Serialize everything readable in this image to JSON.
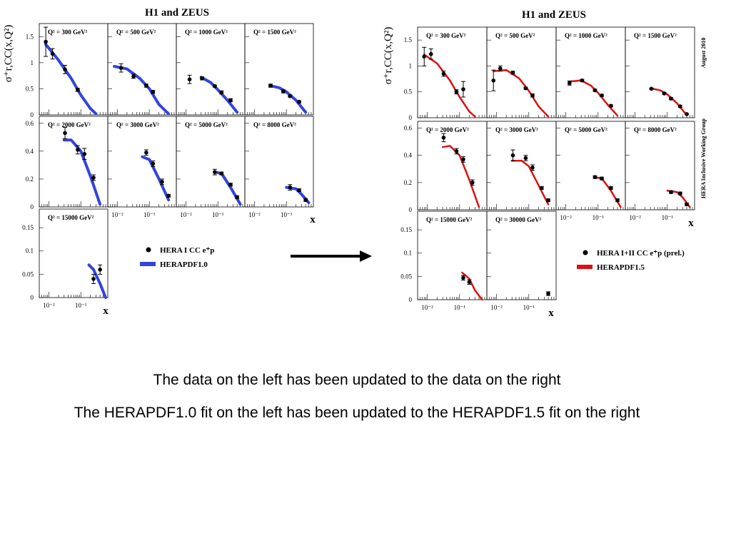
{
  "figures": [
    {
      "title": "H1 and ZEUS",
      "ylabel": "σ⁺r,CC(x,Q²)",
      "xlabel": "x",
      "data_color": "#000000",
      "fit_color": "#3344dd",
      "legend": {
        "data_label": "HERA I CC e⁺p",
        "fit_label": "HERAPDF1.0"
      },
      "side_note": ""
    },
    {
      "title": "H1 and ZEUS",
      "ylabel": "σ⁺r,CC(x,Q²)",
      "xlabel": "x",
      "data_color": "#000000",
      "fit_color": "#dd1111",
      "legend": {
        "data_label": "HERA I+II CC e⁺p (prel.)",
        "fit_label": "HERAPDF1.5"
      },
      "side_note": "August 2010",
      "side_note2": "HERA Inclusive Working Group"
    }
  ],
  "arrow": {
    "icon": "right-arrow-icon"
  },
  "captions": {
    "line1": "The data on the left has been updated to the data on the right",
    "line2": "The HERAPDF1.0 fit on the left has been updated to the HERAPDF1.5 fit on the right"
  },
  "chart_data": [
    {
      "type": "scatter",
      "title": "H1 and ZEUS",
      "xscale": "log",
      "x_ticks": [
        "10⁻²",
        "10⁻¹"
      ],
      "rows": [
        {
          "ylim": [
            0,
            1.75
          ],
          "yticks": [
            "0",
            "0.5",
            "1",
            "1.5"
          ]
        },
        {
          "ylim": [
            0,
            0.65
          ],
          "yticks": [
            "0",
            "0.2",
            "0.4",
            "0.6"
          ]
        },
        {
          "ylim": [
            0,
            0.19
          ],
          "yticks": [
            "0",
            "0.05",
            "0.1",
            "0.15"
          ]
        }
      ],
      "panels": [
        {
          "label": "Q² = 300 GeV²",
          "row": 0,
          "col": 0,
          "points": [
            [
              0.008,
              1.4,
              0.28
            ],
            [
              0.013,
              1.17,
              0.1
            ],
            [
              0.032,
              0.87,
              0.08
            ],
            [
              0.08,
              0.48,
              0.03
            ]
          ],
          "fit": [
            [
              0.008,
              1.35
            ],
            [
              0.02,
              1.05
            ],
            [
              0.05,
              0.7
            ],
            [
              0.1,
              0.38
            ],
            [
              0.2,
              0.12
            ],
            [
              0.3,
              0.02
            ]
          ]
        },
        {
          "label": "Q² = 500 GeV²",
          "row": 0,
          "col": 1,
          "points": [
            [
              0.013,
              0.9,
              0.08
            ],
            [
              0.032,
              0.74,
              0.04
            ],
            [
              0.08,
              0.56,
              0.03
            ],
            [
              0.13,
              0.44,
              0.03
            ]
          ],
          "fit": [
            [
              0.008,
              0.93
            ],
            [
              0.02,
              0.88
            ],
            [
              0.05,
              0.7
            ],
            [
              0.1,
              0.5
            ],
            [
              0.2,
              0.2
            ],
            [
              0.4,
              0.02
            ]
          ]
        },
        {
          "label": "Q² = 1000 GeV²",
          "row": 0,
          "col": 2,
          "points": [
            [
              0.013,
              0.68,
              0.08
            ],
            [
              0.032,
              0.7,
              0.03
            ],
            [
              0.08,
              0.55,
              0.02
            ],
            [
              0.13,
              0.43,
              0.03
            ],
            [
              0.25,
              0.28,
              0.03
            ]
          ],
          "fit": [
            [
              0.03,
              0.72
            ],
            [
              0.06,
              0.62
            ],
            [
              0.1,
              0.48
            ],
            [
              0.2,
              0.28
            ],
            [
              0.4,
              0.05
            ]
          ]
        },
        {
          "label": "Q² = 1500 GeV²",
          "row": 0,
          "col": 3,
          "points": [
            [
              0.032,
              0.56,
              0.03
            ],
            [
              0.08,
              0.45,
              0.03
            ],
            [
              0.13,
              0.36,
              0.02
            ],
            [
              0.25,
              0.25,
              0.02
            ]
          ],
          "fit": [
            [
              0.03,
              0.56
            ],
            [
              0.06,
              0.52
            ],
            [
              0.1,
              0.44
            ],
            [
              0.2,
              0.28
            ],
            [
              0.4,
              0.05
            ]
          ]
        },
        {
          "label": "Q² = 2000 GeV²",
          "row": 1,
          "col": 0,
          "points": [
            [
              0.032,
              0.53,
              0.04
            ],
            [
              0.08,
              0.41,
              0.03
            ],
            [
              0.13,
              0.38,
              0.04
            ],
            [
              0.25,
              0.21,
              0.02
            ]
          ],
          "fit": [
            [
              0.03,
              0.48
            ],
            [
              0.05,
              0.48
            ],
            [
              0.1,
              0.4
            ],
            [
              0.2,
              0.22
            ],
            [
              0.4,
              0.02
            ]
          ]
        },
        {
          "label": "Q² = 3000 GeV²",
          "row": 1,
          "col": 1,
          "points": [
            [
              0.08,
              0.39,
              0.02
            ],
            [
              0.13,
              0.31,
              0.02
            ],
            [
              0.25,
              0.18,
              0.02
            ],
            [
              0.4,
              0.08,
              0.01
            ]
          ],
          "fit": [
            [
              0.06,
              0.36
            ],
            [
              0.1,
              0.34
            ],
            [
              0.2,
              0.2
            ],
            [
              0.4,
              0.05
            ]
          ]
        },
        {
          "label": "Q² = 5000 GeV²",
          "row": 1,
          "col": 2,
          "points": [
            [
              0.08,
              0.25,
              0.02
            ],
            [
              0.13,
              0.24,
              0.01
            ],
            [
              0.25,
              0.16,
              0.01
            ],
            [
              0.4,
              0.07,
              0.01
            ]
          ],
          "fit": [
            [
              0.08,
              0.25
            ],
            [
              0.13,
              0.24
            ],
            [
              0.25,
              0.14
            ],
            [
              0.5,
              0.02
            ]
          ]
        },
        {
          "label": "Q² = 8000 GeV²",
          "row": 1,
          "col": 3,
          "points": [
            [
              0.13,
              0.14,
              0.02
            ],
            [
              0.25,
              0.12,
              0.01
            ],
            [
              0.4,
              0.05,
              0.01
            ]
          ],
          "fit": [
            [
              0.1,
              0.14
            ],
            [
              0.2,
              0.13
            ],
            [
              0.3,
              0.09
            ],
            [
              0.5,
              0.03
            ]
          ]
        },
        {
          "label": "Q² = 15000 GeV²",
          "row": 2,
          "col": 0,
          "points": [
            [
              0.25,
              0.04,
              0.01
            ],
            [
              0.4,
              0.06,
              0.01
            ]
          ],
          "fit": [
            [
              0.18,
              0.07
            ],
            [
              0.25,
              0.06
            ],
            [
              0.4,
              0.03
            ],
            [
              0.6,
              0.0
            ]
          ]
        }
      ]
    },
    {
      "type": "scatter",
      "title": "H1 and ZEUS",
      "xscale": "log",
      "x_ticks": [
        "10⁻²",
        "10⁻¹"
      ],
      "rows": [
        {
          "ylim": [
            0,
            1.75
          ],
          "yticks": [
            "0",
            "0.5",
            "1",
            "1.5"
          ]
        },
        {
          "ylim": [
            0,
            0.65
          ],
          "yticks": [
            "0",
            "0.2",
            "0.4",
            "0.6"
          ]
        },
        {
          "ylim": [
            0,
            0.19
          ],
          "yticks": [
            "0",
            "0.05",
            "0.1",
            "0.15"
          ]
        }
      ],
      "panels": [
        {
          "label": "Q² = 300 GeV²",
          "row": 0,
          "col": 0,
          "points": [
            [
              0.008,
              1.18,
              0.18
            ],
            [
              0.013,
              1.23,
              0.1
            ],
            [
              0.032,
              0.85,
              0.05
            ],
            [
              0.08,
              0.5,
              0.04
            ],
            [
              0.13,
              0.55,
              0.15
            ]
          ],
          "fit": [
            [
              0.008,
              1.22
            ],
            [
              0.02,
              1.05
            ],
            [
              0.05,
              0.72
            ],
            [
              0.1,
              0.4
            ],
            [
              0.2,
              0.12
            ],
            [
              0.3,
              0.02
            ]
          ]
        },
        {
          "label": "Q² = 500 GeV²",
          "row": 0,
          "col": 1,
          "points": [
            [
              0.008,
              0.72,
              0.2
            ],
            [
              0.013,
              0.95,
              0.05
            ],
            [
              0.032,
              0.87,
              0.03
            ],
            [
              0.08,
              0.57,
              0.02
            ],
            [
              0.13,
              0.43,
              0.03
            ]
          ],
          "fit": [
            [
              0.008,
              0.9
            ],
            [
              0.02,
              0.92
            ],
            [
              0.05,
              0.76
            ],
            [
              0.1,
              0.52
            ],
            [
              0.2,
              0.22
            ],
            [
              0.4,
              0.02
            ]
          ]
        },
        {
          "label": "Q² = 1000 GeV²",
          "row": 0,
          "col": 2,
          "points": [
            [
              0.013,
              0.67,
              0.04
            ],
            [
              0.032,
              0.72,
              0.02
            ],
            [
              0.08,
              0.53,
              0.02
            ],
            [
              0.13,
              0.43,
              0.02
            ],
            [
              0.25,
              0.23,
              0.02
            ]
          ],
          "fit": [
            [
              0.013,
              0.7
            ],
            [
              0.03,
              0.72
            ],
            [
              0.06,
              0.62
            ],
            [
              0.1,
              0.48
            ],
            [
              0.2,
              0.25
            ],
            [
              0.4,
              0.04
            ]
          ]
        },
        {
          "label": "Q² = 1500 GeV²",
          "row": 0,
          "col": 3,
          "points": [
            [
              0.032,
              0.56,
              0.01
            ],
            [
              0.08,
              0.47,
              0.02
            ],
            [
              0.13,
              0.37,
              0.02
            ],
            [
              0.25,
              0.22,
              0.02
            ],
            [
              0.4,
              0.07,
              0.01
            ]
          ],
          "fit": [
            [
              0.03,
              0.57
            ],
            [
              0.06,
              0.53
            ],
            [
              0.1,
              0.45
            ],
            [
              0.2,
              0.28
            ],
            [
              0.4,
              0.05
            ]
          ]
        },
        {
          "label": "Q² = 2000 GeV²",
          "row": 1,
          "col": 0,
          "points": [
            [
              0.032,
              0.53,
              0.03
            ],
            [
              0.08,
              0.43,
              0.02
            ],
            [
              0.13,
              0.37,
              0.02
            ],
            [
              0.25,
              0.2,
              0.02
            ]
          ],
          "fit": [
            [
              0.03,
              0.46
            ],
            [
              0.05,
              0.47
            ],
            [
              0.1,
              0.4
            ],
            [
              0.2,
              0.22
            ],
            [
              0.4,
              0.02
            ]
          ]
        },
        {
          "label": "Q² = 3000 GeV²",
          "row": 1,
          "col": 1,
          "points": [
            [
              0.032,
              0.4,
              0.04
            ],
            [
              0.08,
              0.38,
              0.02
            ],
            [
              0.13,
              0.31,
              0.02
            ],
            [
              0.25,
              0.16,
              0.01
            ],
            [
              0.4,
              0.07,
              0.01
            ]
          ],
          "fit": [
            [
              0.03,
              0.36
            ],
            [
              0.06,
              0.36
            ],
            [
              0.1,
              0.32
            ],
            [
              0.2,
              0.18
            ],
            [
              0.4,
              0.04
            ]
          ]
        },
        {
          "label": "Q² = 5000 GeV²",
          "row": 1,
          "col": 2,
          "points": [
            [
              0.08,
              0.24,
              0.01
            ],
            [
              0.13,
              0.23,
              0.01
            ],
            [
              0.25,
              0.16,
              0.01
            ],
            [
              0.4,
              0.07,
              0.01
            ]
          ],
          "fit": [
            [
              0.08,
              0.24
            ],
            [
              0.13,
              0.23
            ],
            [
              0.25,
              0.14
            ],
            [
              0.5,
              0.02
            ]
          ]
        },
        {
          "label": "Q² = 8000 GeV²",
          "row": 1,
          "col": 3,
          "points": [
            [
              0.13,
              0.13,
              0.01
            ],
            [
              0.25,
              0.12,
              0.01
            ],
            [
              0.4,
              0.04,
              0.01
            ]
          ],
          "fit": [
            [
              0.1,
              0.14
            ],
            [
              0.2,
              0.13
            ],
            [
              0.3,
              0.09
            ],
            [
              0.5,
              0.02
            ]
          ]
        },
        {
          "label": "Q² = 15000 GeV²",
          "row": 2,
          "col": 0,
          "points": [
            [
              0.13,
              0.047,
              0.005
            ],
            [
              0.2,
              0.038,
              0.005
            ]
          ],
          "fit": [
            [
              0.12,
              0.058
            ],
            [
              0.2,
              0.045
            ],
            [
              0.3,
              0.02
            ],
            [
              0.5,
              0.0
            ]
          ]
        },
        {
          "label": "Q² = 30000 GeV²",
          "row": 2,
          "col": 1,
          "points": [
            [
              0.4,
              0.013,
              0.004
            ]
          ],
          "fit": []
        }
      ]
    }
  ]
}
